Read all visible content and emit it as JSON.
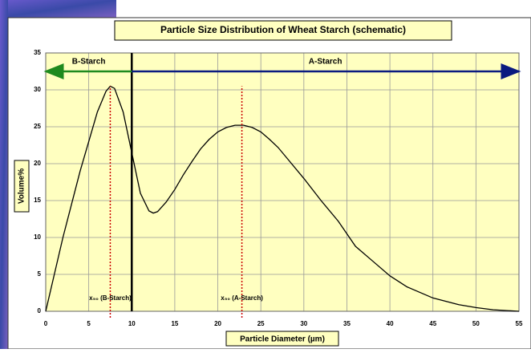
{
  "chart_data": {
    "type": "line",
    "title": "Particle Size Distribution of Wheat Starch (schematic)",
    "x_label": "Particle Diameter (µm)",
    "y_label": "Volume%",
    "xlim": [
      0,
      55
    ],
    "xticks": [
      0,
      5,
      10,
      15,
      20,
      25,
      30,
      35,
      40,
      45,
      50,
      55
    ],
    "ylim": [
      0,
      35
    ],
    "yticks": [
      0,
      5,
      10,
      15,
      20,
      25,
      30,
      35
    ],
    "grid": true,
    "x": [
      0,
      1,
      2,
      3,
      4,
      5,
      6,
      7,
      7.5,
      8,
      9,
      10,
      11,
      12,
      12.5,
      13,
      14,
      15,
      16,
      17,
      18,
      19,
      20,
      21,
      22,
      23,
      24,
      25,
      26,
      27,
      28,
      30,
      32,
      34,
      35,
      36,
      38,
      40,
      42,
      45,
      48,
      50,
      52,
      55
    ],
    "series": [
      {
        "color": "#000000",
        "values": [
          0,
          5,
          10,
          14.5,
          19,
          23,
          27,
          29.8,
          30.5,
          30.2,
          27,
          21.5,
          16,
          13.6,
          13.3,
          13.5,
          14.8,
          16.5,
          18.5,
          20.3,
          22,
          23.3,
          24.3,
          24.9,
          25.2,
          25.2,
          24.9,
          24.3,
          23.3,
          22.2,
          20.8,
          18,
          15,
          12.2,
          10.5,
          8.8,
          6.8,
          4.8,
          3.3,
          1.8,
          0.9,
          0.5,
          0.2,
          0
        ]
      }
    ],
    "divider": {
      "x": 10
    },
    "regions": [
      {
        "label": "B-Starch",
        "from": 10,
        "to": 0,
        "y": 32.5,
        "color": "#1e8a1e"
      },
      {
        "label": "A-Starch",
        "from": 10,
        "to": 55,
        "y": 32.5,
        "color": "#0a1a80"
      }
    ],
    "medians": [
      {
        "x": 7.5,
        "label": "x₅₀ (B-Starch)",
        "color": "#cc0000"
      },
      {
        "x": 22.8,
        "label": "x₅₀ (A-Starch)",
        "color": "#cc0000"
      }
    ]
  }
}
